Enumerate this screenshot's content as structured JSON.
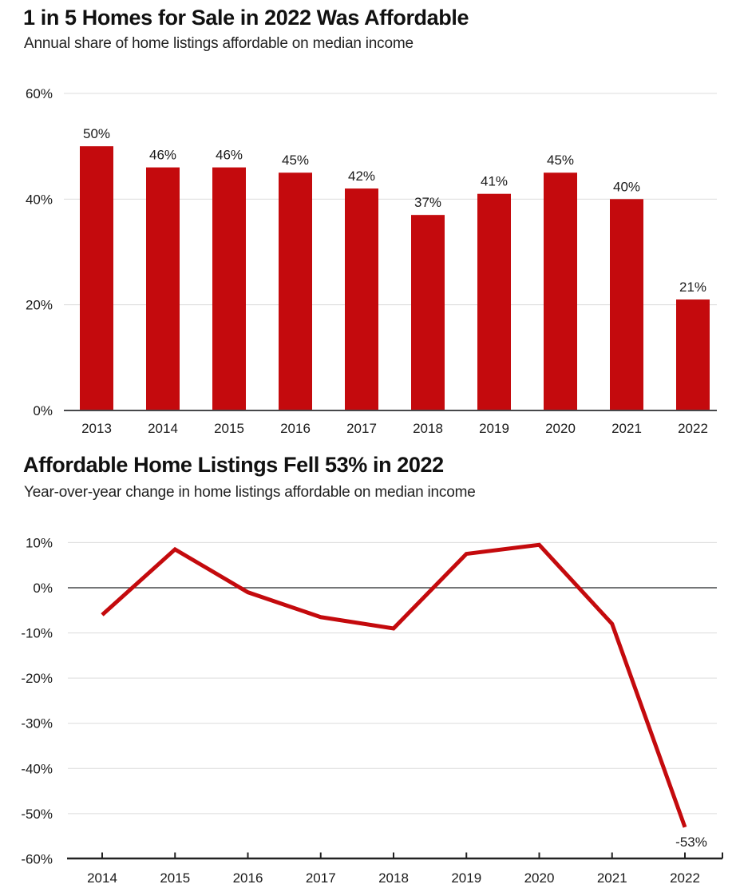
{
  "colors": {
    "series_red": "#c40a0d",
    "gridline": "#dcdcdc",
    "zero_line": "#47484a",
    "bottom_axis": "#222222",
    "text": "#1a1a1a"
  },
  "chart_data": [
    {
      "type": "bar",
      "title": "1 in 5 Homes for Sale in 2022 Was Affordable",
      "subtitle": "Annual share of home listings affordable on median income",
      "categories": [
        "2013",
        "2014",
        "2015",
        "2016",
        "2017",
        "2018",
        "2019",
        "2020",
        "2021",
        "2022"
      ],
      "values": [
        50,
        46,
        46,
        45,
        42,
        37,
        41,
        45,
        40,
        21
      ],
      "bar_labels": [
        "50%",
        "46%",
        "46%",
        "45%",
        "42%",
        "37%",
        "41%",
        "45%",
        "40%",
        "21%"
      ],
      "unit": "%",
      "ylim": [
        0,
        60
      ],
      "yticks": [
        60,
        40,
        20,
        0
      ],
      "ytick_labels": [
        "60%",
        "40%",
        "20%",
        "0%"
      ],
      "grid": true,
      "legend": "none",
      "bar_color": "#c40a0d"
    },
    {
      "type": "line",
      "title": "Affordable Home Listings Fell 53% in 2022",
      "subtitle": "Year-over-year change in home listings affordable on median income",
      "x": [
        "2014",
        "2015",
        "2016",
        "2017",
        "2018",
        "2019",
        "2020",
        "2021",
        "2022"
      ],
      "values": [
        -6,
        8.5,
        -1,
        -6.5,
        -9,
        7.5,
        9.5,
        -8,
        -53
      ],
      "unit": "%",
      "ylim": [
        -60,
        10
      ],
      "yticks": [
        10,
        0,
        -10,
        -20,
        -30,
        -40,
        -50,
        -60
      ],
      "ytick_labels": [
        "10%",
        "0%",
        "-10%",
        "-20%",
        "-30%",
        "-40%",
        "-50%",
        "-60%"
      ],
      "grid": true,
      "legend": "none",
      "zero_line": true,
      "line_color": "#c40a0d",
      "annotations": [
        {
          "text": "-53%",
          "x": "2022",
          "y": -53
        }
      ]
    }
  ]
}
